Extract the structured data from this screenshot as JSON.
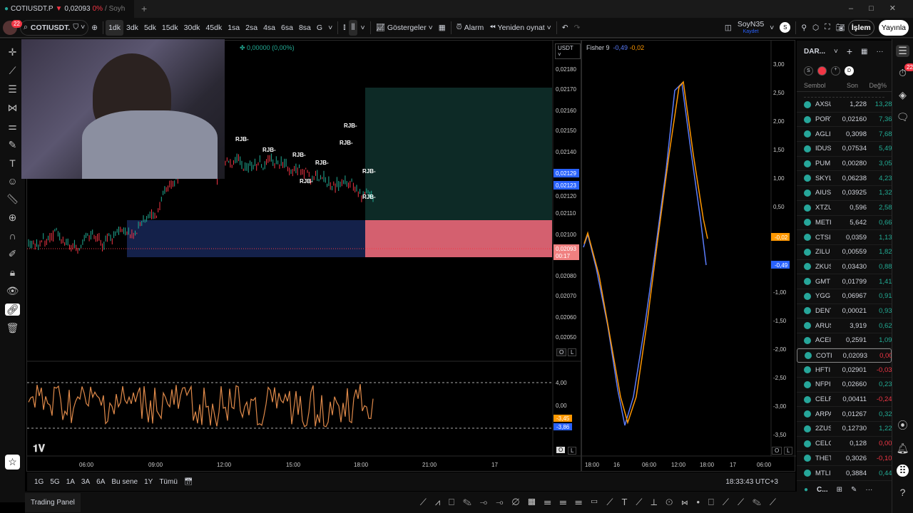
{
  "tab": {
    "symbol": "COTIUSDT.P",
    "arrow": "▼",
    "price": "0,02093",
    "change": "0%",
    "user": "/ Soyh",
    "new_tab": "+"
  },
  "toolbar": {
    "badge": "22",
    "search": "COTIUSDT.",
    "intervals": [
      "1dk",
      "3dk",
      "5dk",
      "15dk",
      "30dk",
      "45dk",
      "1sa",
      "2sa",
      "4sa",
      "6sa",
      "8sa",
      "G"
    ],
    "selected_interval": "1dk",
    "indicators": "Göstergeler",
    "alarm": "Alarm",
    "replay": "Yeniden oynat",
    "layout_name": "SoyN35",
    "layout_save": "Kaydet",
    "avatar": "S",
    "trade": "İşlem",
    "publish": "Yayınla"
  },
  "chart": {
    "currency": "USDT",
    "ohlc_change": "0,00000 (0,00%)",
    "price_ticks": [
      "0,02180",
      "0,02170",
      "0,02160",
      "0,02150",
      "0,02140",
      "0,02120",
      "0,02110",
      "0,02100",
      "0,02080",
      "0,02070",
      "0,02060",
      "0,02050"
    ],
    "label_1": "0,02129",
    "label_2": "0,02123",
    "current_price": "0,02093",
    "countdown": "00:17",
    "signal": "RJB-",
    "osc_ticks": [
      "4,00",
      "0,00"
    ],
    "osc_label_1": "-3,45",
    "osc_label_2": "-3,86",
    "time_ticks": [
      "06:00",
      "09:00",
      "12:00",
      "15:00",
      "18:00",
      "21:00",
      "17"
    ],
    "o": "O",
    "l": "L",
    "colors": {
      "up": "#22ab94",
      "down": "#f23645",
      "osc": "#e08a4a"
    }
  },
  "fisher": {
    "title": "Fisher 9",
    "v1": "-0,49",
    "v2": "-0,02",
    "ticks": [
      "3,00",
      "2,50",
      "2,00",
      "1,50",
      "1,00",
      "0,50",
      "-1,00",
      "-1,50",
      "-2,00",
      "-2,50",
      "-3,00",
      "-3,50"
    ],
    "time_ticks": [
      "18:00",
      "16",
      "06:00",
      "12:00",
      "18:00",
      "17",
      "06:00"
    ],
    "colors": {
      "fisher": "#ff9800",
      "trigger": "#5b7cfa"
    }
  },
  "bottom": {
    "ranges": [
      "1G",
      "5G",
      "1A",
      "3A",
      "6A",
      "Bu sene",
      "1Y",
      "Tümü"
    ],
    "clock": "18:33:43 UTC+3",
    "panel": "Trading Panel"
  },
  "watchlist": {
    "title": "DAR...",
    "filters": [
      "S",
      "D"
    ],
    "cols": [
      "Sembol",
      "Son",
      "Değ%"
    ],
    "footer": "C...",
    "rows": [
      [
        "AXSU",
        "1,228",
        "13,28%",
        "g"
      ],
      [
        "PORT",
        "0,02160",
        "7,36%",
        "g"
      ],
      [
        "AGLI",
        "0,3098",
        "7,68%",
        "g"
      ],
      [
        "IDUS",
        "0,07534",
        "5,49%",
        "g"
      ],
      [
        "PUM",
        "0,00280",
        "3,05%",
        "g"
      ],
      [
        "SKYL",
        "0,06238",
        "4,23%",
        "g"
      ],
      [
        "AIUS",
        "0,03925",
        "1,32%",
        "g"
      ],
      [
        "XTZU",
        "0,596",
        "2,58%",
        "g"
      ],
      [
        "METI",
        "5,642",
        "0,66%",
        "g"
      ],
      [
        "CTSI",
        "0,0359",
        "1,13%",
        "g"
      ],
      [
        "ZILU",
        "0,00559",
        "1,82%",
        "g"
      ],
      [
        "ZKUS",
        "0,03430",
        "0,88%",
        "g"
      ],
      [
        "GMT",
        "0,01799",
        "1,41%",
        "g"
      ],
      [
        "YGG",
        "0,06967",
        "0,91%",
        "g"
      ],
      [
        "DENT",
        "0,00021",
        "0,93%",
        "g"
      ],
      [
        "ARUS",
        "3,919",
        "0,62%",
        "g"
      ],
      [
        "ACEI",
        "0,2591",
        "1,09%",
        "g"
      ],
      [
        "COTI",
        "0,02093",
        "0,00%",
        "r"
      ],
      [
        "HFTI",
        "0,02901",
        "-0,03%",
        "r"
      ],
      [
        "NFPI",
        "0,02660",
        "0,23%",
        "g"
      ],
      [
        "CELR",
        "0,00411",
        "-0,24%",
        "r"
      ],
      [
        "ARPA",
        "0,01267",
        "0,32%",
        "g"
      ],
      [
        "2ZUS",
        "0,12730",
        "1,22%",
        "g"
      ],
      [
        "CELO",
        "0,128",
        "0,00%",
        "r"
      ],
      [
        "THET",
        "0,3026",
        "-0,10%",
        "r"
      ],
      [
        "MTLI",
        "0,3884",
        "0,44%",
        "g"
      ]
    ]
  },
  "sidebar": {
    "alerts_badge": "22"
  }
}
